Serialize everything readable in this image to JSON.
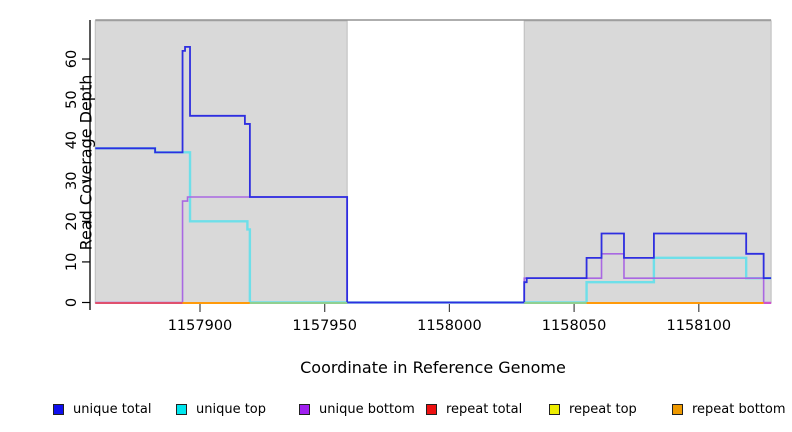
{
  "chart_data": {
    "type": "line",
    "subtype": "step-coverage",
    "title": "",
    "xlabel": "Coordinate in Reference Genome",
    "ylabel": "Read Coverage Depth",
    "xlim": [
      1157858,
      1158129
    ],
    "ylim": [
      0,
      69.6
    ],
    "grid": false,
    "x_ticks": [
      {
        "label": "1157900",
        "coord": 1157900
      },
      {
        "label": "1157950",
        "coord": 1157950
      },
      {
        "label": "1158000",
        "coord": 1158000
      },
      {
        "label": "1158050",
        "coord": 1158050
      },
      {
        "label": "1158100",
        "coord": 1158100
      }
    ],
    "y_ticks": [
      {
        "label": "0",
        "value": 0
      },
      {
        "label": "10",
        "value": 10
      },
      {
        "label": "20",
        "value": 20
      },
      {
        "label": "30",
        "value": 30
      },
      {
        "label": "40",
        "value": 40
      },
      {
        "label": "50",
        "value": 50
      },
      {
        "label": "60",
        "value": 60
      }
    ],
    "background_regions": [
      {
        "from": 1157858,
        "to": 1157959,
        "fill": "#d9d9d9",
        "stroke": "#bdbdbd"
      },
      {
        "from": 1158030,
        "to": 1158129,
        "fill": "#d9d9d9",
        "stroke": "#bdbdbd"
      }
    ],
    "series": [
      {
        "name": "unique top",
        "color": "#6edfe9",
        "width": 2.4,
        "points": [
          [
            1157858,
            38
          ],
          [
            1157882,
            37
          ],
          [
            1157896,
            20
          ],
          [
            1157919,
            18
          ],
          [
            1157920,
            0
          ],
          [
            1158055,
            5
          ],
          [
            1158082,
            11
          ],
          [
            1158119,
            6
          ],
          [
            1158129,
            6
          ]
        ]
      },
      {
        "name": "unique bottom",
        "color": "#a968e2",
        "width": 1.6,
        "points": [
          [
            1157858,
            0
          ],
          [
            1157893,
            25
          ],
          [
            1157895,
            26
          ],
          [
            1157959,
            0
          ],
          [
            1158030,
            6
          ],
          [
            1158061,
            12
          ],
          [
            1158070,
            6
          ],
          [
            1158126,
            0
          ],
          [
            1158129,
            0
          ]
        ]
      },
      {
        "name": "unique total",
        "color": "#2e2ee0",
        "width": 1.8,
        "points": [
          [
            1157858,
            38
          ],
          [
            1157882,
            37
          ],
          [
            1157893,
            62
          ],
          [
            1157894,
            63
          ],
          [
            1157896,
            46
          ],
          [
            1157918,
            44
          ],
          [
            1157920,
            26
          ],
          [
            1157959,
            0
          ],
          [
            1158030,
            5
          ],
          [
            1158031,
            6
          ],
          [
            1158055,
            11
          ],
          [
            1158061,
            17
          ],
          [
            1158070,
            11
          ],
          [
            1158082,
            17
          ],
          [
            1158119,
            12
          ],
          [
            1158126,
            6
          ],
          [
            1158129,
            6
          ]
        ]
      }
    ],
    "baseline_segments": [
      {
        "series": "repeat total",
        "from": 1157858,
        "to": 1157893,
        "color": "#e0506e"
      },
      {
        "series": "repeat bottom",
        "from": 1157893,
        "to": 1157920,
        "color": "#ff9a0a"
      },
      {
        "series": "repeat top",
        "from": 1157920,
        "to": 1157959,
        "color": "#90d090"
      },
      {
        "series": "repeat top",
        "from": 1158030,
        "to": 1158055,
        "color": "#90d090"
      },
      {
        "series": "repeat bottom",
        "from": 1158055,
        "to": 1158126,
        "color": "#ff9a0a"
      },
      {
        "series": "unique bottom",
        "from": 1158126,
        "to": 1158129,
        "color": "#d052cc"
      }
    ],
    "legend": [
      {
        "label": "unique total",
        "color": "#0f0fee"
      },
      {
        "label": "unique top",
        "color": "#00e6ee"
      },
      {
        "label": "unique bottom",
        "color": "#a020f0"
      },
      {
        "label": "repeat total",
        "color": "#ee1111"
      },
      {
        "label": "repeat top",
        "color": "#eded00"
      },
      {
        "label": "repeat bottom",
        "color": "#ee9900"
      }
    ],
    "legend_position": "bottom",
    "axis_color": "#000000",
    "plot_top_border_color": "#949494"
  },
  "x_axis": {
    "title": "Coordinate in Reference Genome"
  },
  "y_axis": {
    "title": "Read Coverage Depth"
  }
}
